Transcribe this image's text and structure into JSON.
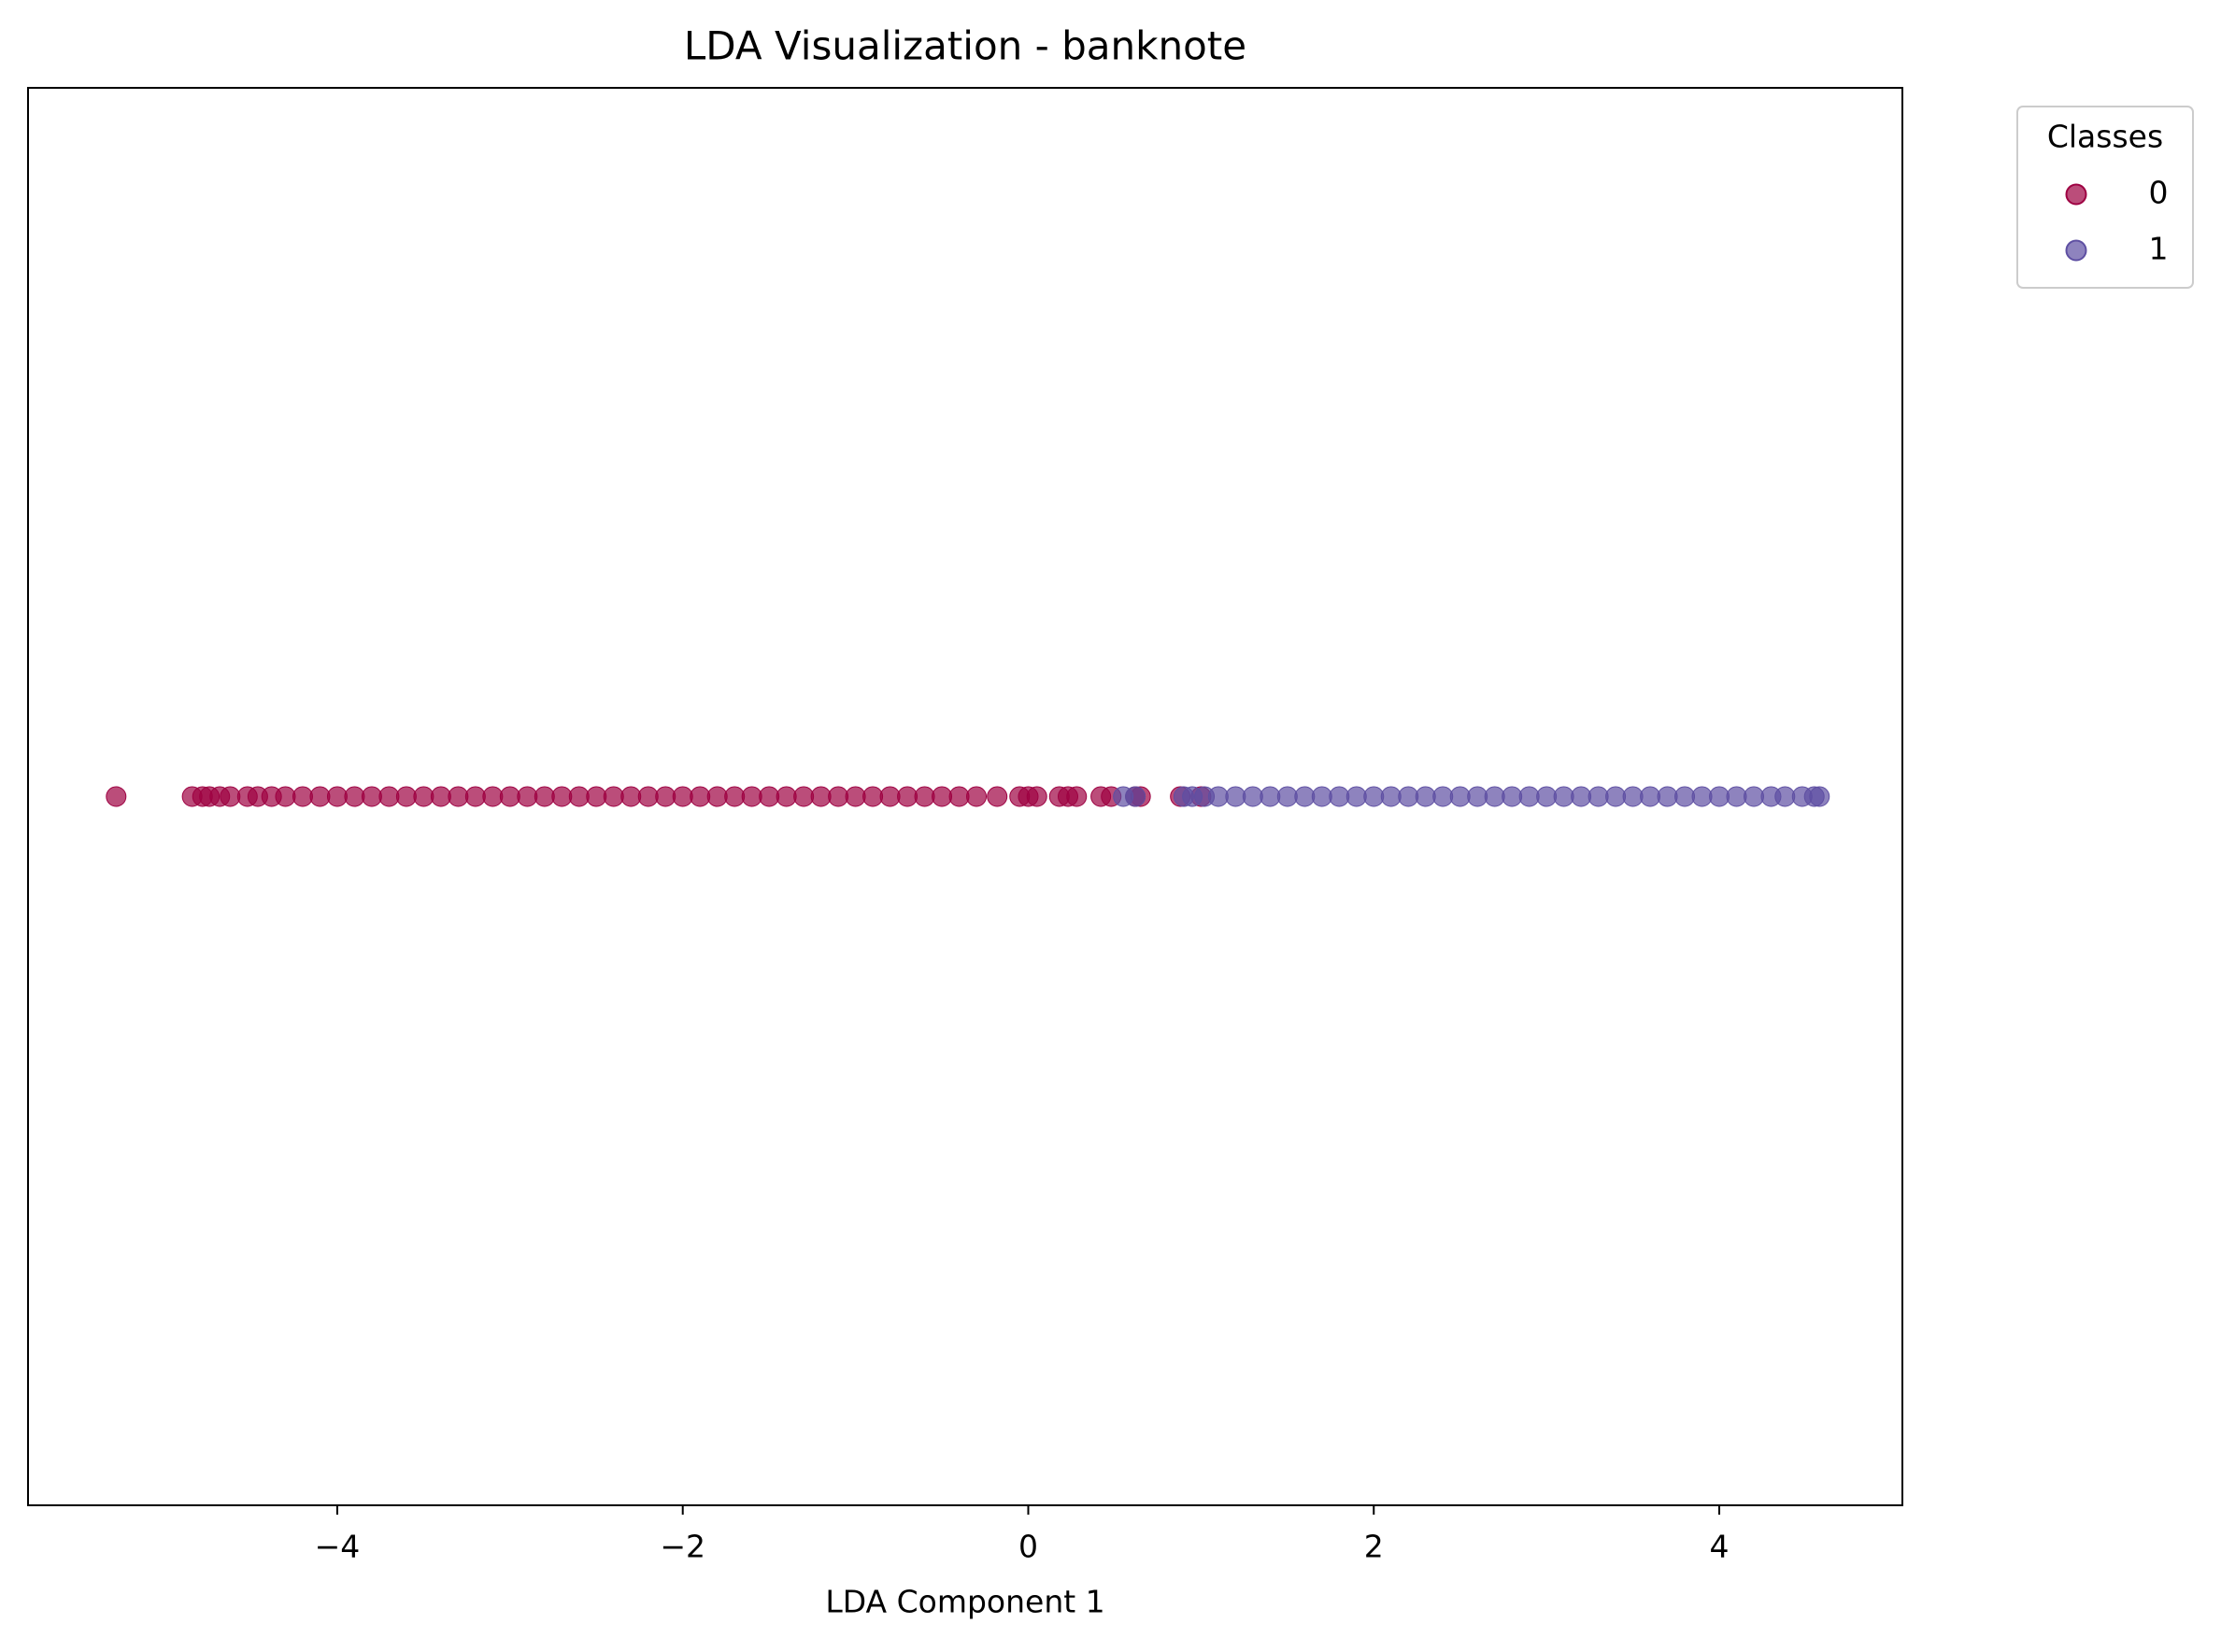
{
  "chart_data": {
    "type": "scatter",
    "title": "LDA Visualization - banknote",
    "x_label": "LDA Component 1",
    "legend_title": "Classes",
    "legend": "outside-upper-right",
    "xlim": [
      -5.79,
      5.06
    ],
    "ylim": [
      -0.055,
      0.055
    ],
    "xticks": [
      {
        "value": -4,
        "label": "−4"
      },
      {
        "value": -2,
        "label": "−2"
      },
      0,
      2,
      4
    ],
    "series": [
      {
        "name": "0",
        "color": "#9e0142",
        "opacity": 0.7,
        "x": [
          -5.28,
          -4.84,
          -4.78,
          -4.74,
          -4.68,
          -4.62,
          -4.52,
          -4.46,
          -4.38,
          -4.3,
          -4.2,
          -4.1,
          -4.0,
          -3.9,
          -3.8,
          -3.7,
          -3.6,
          -3.5,
          -3.4,
          -3.3,
          -3.2,
          -3.1,
          -3.0,
          -2.9,
          -2.8,
          -2.7,
          -2.6,
          -2.5,
          -2.4,
          -2.3,
          -2.2,
          -2.1,
          -2.0,
          -1.9,
          -1.8,
          -1.7,
          -1.6,
          -1.5,
          -1.4,
          -1.3,
          -1.2,
          -1.1,
          -1.0,
          -0.9,
          -0.8,
          -0.7,
          -0.6,
          -0.5,
          -0.4,
          -0.3,
          -0.18,
          -0.05,
          0.0,
          0.05,
          0.18,
          0.23,
          0.28,
          0.42,
          0.48,
          0.62,
          0.65,
          0.88,
          1.0
        ],
        "y": [
          0,
          0,
          0,
          0,
          0,
          0,
          0,
          0,
          0,
          0,
          0,
          0,
          0,
          0,
          0,
          0,
          0,
          0,
          0,
          0,
          0,
          0,
          0,
          0,
          0,
          0,
          0,
          0,
          0,
          0,
          0,
          0,
          0,
          0,
          0,
          0,
          0,
          0,
          0,
          0,
          0,
          0,
          0,
          0,
          0,
          0,
          0,
          0,
          0,
          0,
          0,
          0,
          0,
          0,
          0,
          0,
          0,
          0,
          0,
          0,
          0,
          0,
          0
        ]
      },
      {
        "name": "1",
        "color": "#5e4fa2",
        "opacity": 0.7,
        "x": [
          0.55,
          0.62,
          0.9,
          0.95,
          1.02,
          1.1,
          1.2,
          1.3,
          1.4,
          1.5,
          1.6,
          1.7,
          1.8,
          1.9,
          2.0,
          2.1,
          2.2,
          2.3,
          2.4,
          2.5,
          2.6,
          2.7,
          2.8,
          2.9,
          3.0,
          3.1,
          3.2,
          3.3,
          3.4,
          3.5,
          3.6,
          3.7,
          3.8,
          3.9,
          4.0,
          4.1,
          4.2,
          4.3,
          4.38,
          4.48,
          4.55,
          4.58
        ],
        "y": [
          0,
          0,
          0,
          0,
          0,
          0,
          0,
          0,
          0,
          0,
          0,
          0,
          0,
          0,
          0,
          0,
          0,
          0,
          0,
          0,
          0,
          0,
          0,
          0,
          0,
          0,
          0,
          0,
          0,
          0,
          0,
          0,
          0,
          0,
          0,
          0,
          0,
          0,
          0,
          0,
          0,
          0
        ]
      }
    ]
  }
}
